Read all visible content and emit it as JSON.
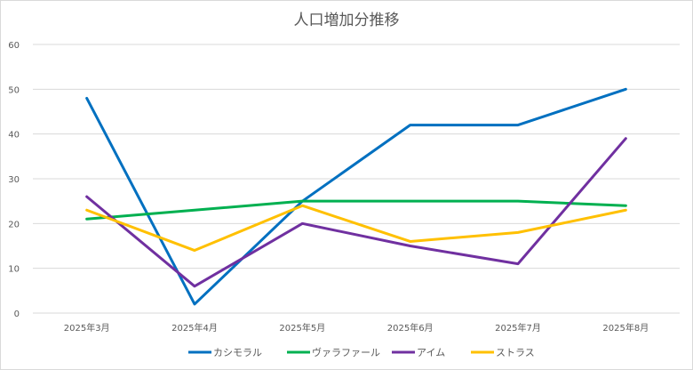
{
  "chart_data": {
    "type": "line",
    "title": "人口増加分推移",
    "xlabel": "",
    "ylabel": "",
    "categories": [
      "2025年3月",
      "2025年4月",
      "2025年5月",
      "2025年6月",
      "2025年7月",
      "2025年8月"
    ],
    "ylim": [
      0,
      60
    ],
    "yticks": [
      0,
      10,
      20,
      30,
      40,
      50,
      60
    ],
    "ytick_labels": [
      "0",
      "10",
      "20",
      "30",
      "40",
      "50",
      "60"
    ],
    "grid": true,
    "legend_position": "bottom",
    "series": [
      {
        "name": "カシモラル",
        "color": "#0070c0",
        "values": [
          48,
          2,
          25,
          42,
          42,
          50
        ]
      },
      {
        "name": "ヴァラファール",
        "color": "#00b050",
        "values": [
          21,
          23,
          25,
          25,
          25,
          24
        ]
      },
      {
        "name": "アイム",
        "color": "#7030a0",
        "values": [
          26,
          6,
          20,
          15,
          11,
          39
        ]
      },
      {
        "name": "ストラス",
        "color": "#ffc000",
        "values": [
          23,
          14,
          24,
          16,
          18,
          23
        ]
      }
    ]
  }
}
